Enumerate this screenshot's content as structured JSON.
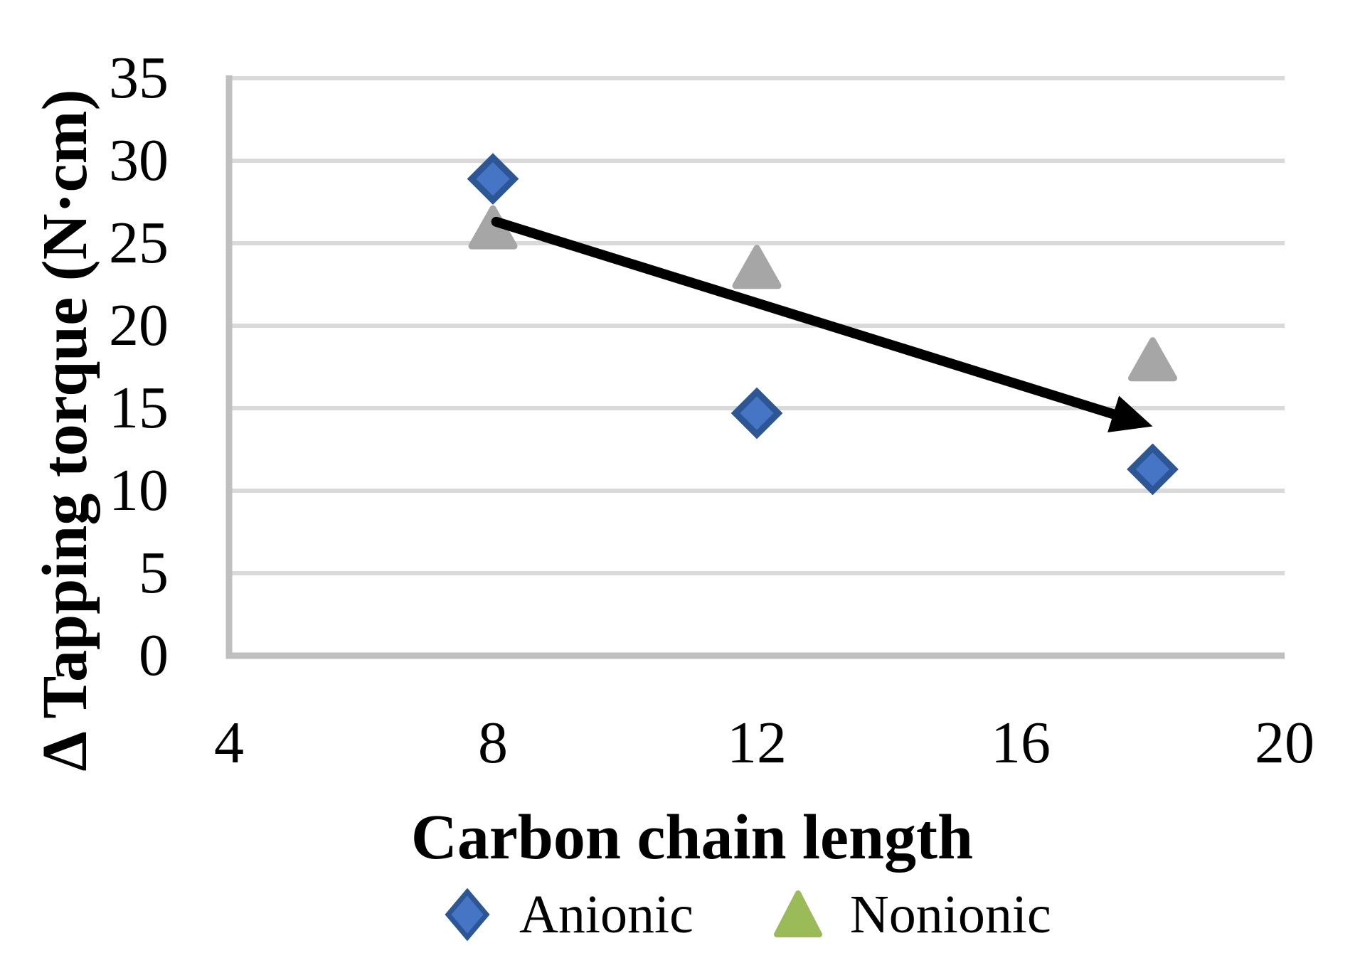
{
  "chart_data": {
    "type": "scatter",
    "title": "",
    "xlabel": "Carbon chain length",
    "ylabel": "Δ Tapping torque (N·cm)",
    "xlim": [
      4,
      20
    ],
    "ylim": [
      0,
      35
    ],
    "x_ticks": [
      4,
      8,
      12,
      16,
      20
    ],
    "y_ticks": [
      0,
      5,
      10,
      15,
      20,
      25,
      30,
      35
    ],
    "grid": "horizontal-only",
    "legend_position": "bottom-center",
    "series": [
      {
        "name": "Anionic",
        "marker": "diamond",
        "marker_fill": "#4575C4",
        "marker_border": "#2D5694",
        "legend_fill": "#4575C4",
        "legend_border": "#2D5694",
        "points": [
          [
            8,
            28.9
          ],
          [
            12,
            14.7
          ],
          [
            18,
            11.3
          ]
        ]
      },
      {
        "name": "Nonionic",
        "marker": "triangle",
        "marker_fill": "#A6A6A6",
        "marker_border": "#A6A6A6",
        "legend_fill": "#9BBB59",
        "legend_border": "#9BBB59",
        "points": [
          [
            8,
            25.9
          ],
          [
            12,
            23.5
          ],
          [
            18,
            17.9
          ]
        ]
      }
    ],
    "annotations": [
      {
        "type": "arrow",
        "description": "black trend arrow sloping down from left to right",
        "from": [
          8.05,
          26.3
        ],
        "to": [
          18.0,
          13.9
        ],
        "color": "#000000"
      }
    ]
  },
  "colors": {
    "background": "#FFFFFF",
    "text": "#000000",
    "gridline": "#D9D9D9",
    "axis_line": "#BFBFBF",
    "arrow": "#000000"
  }
}
